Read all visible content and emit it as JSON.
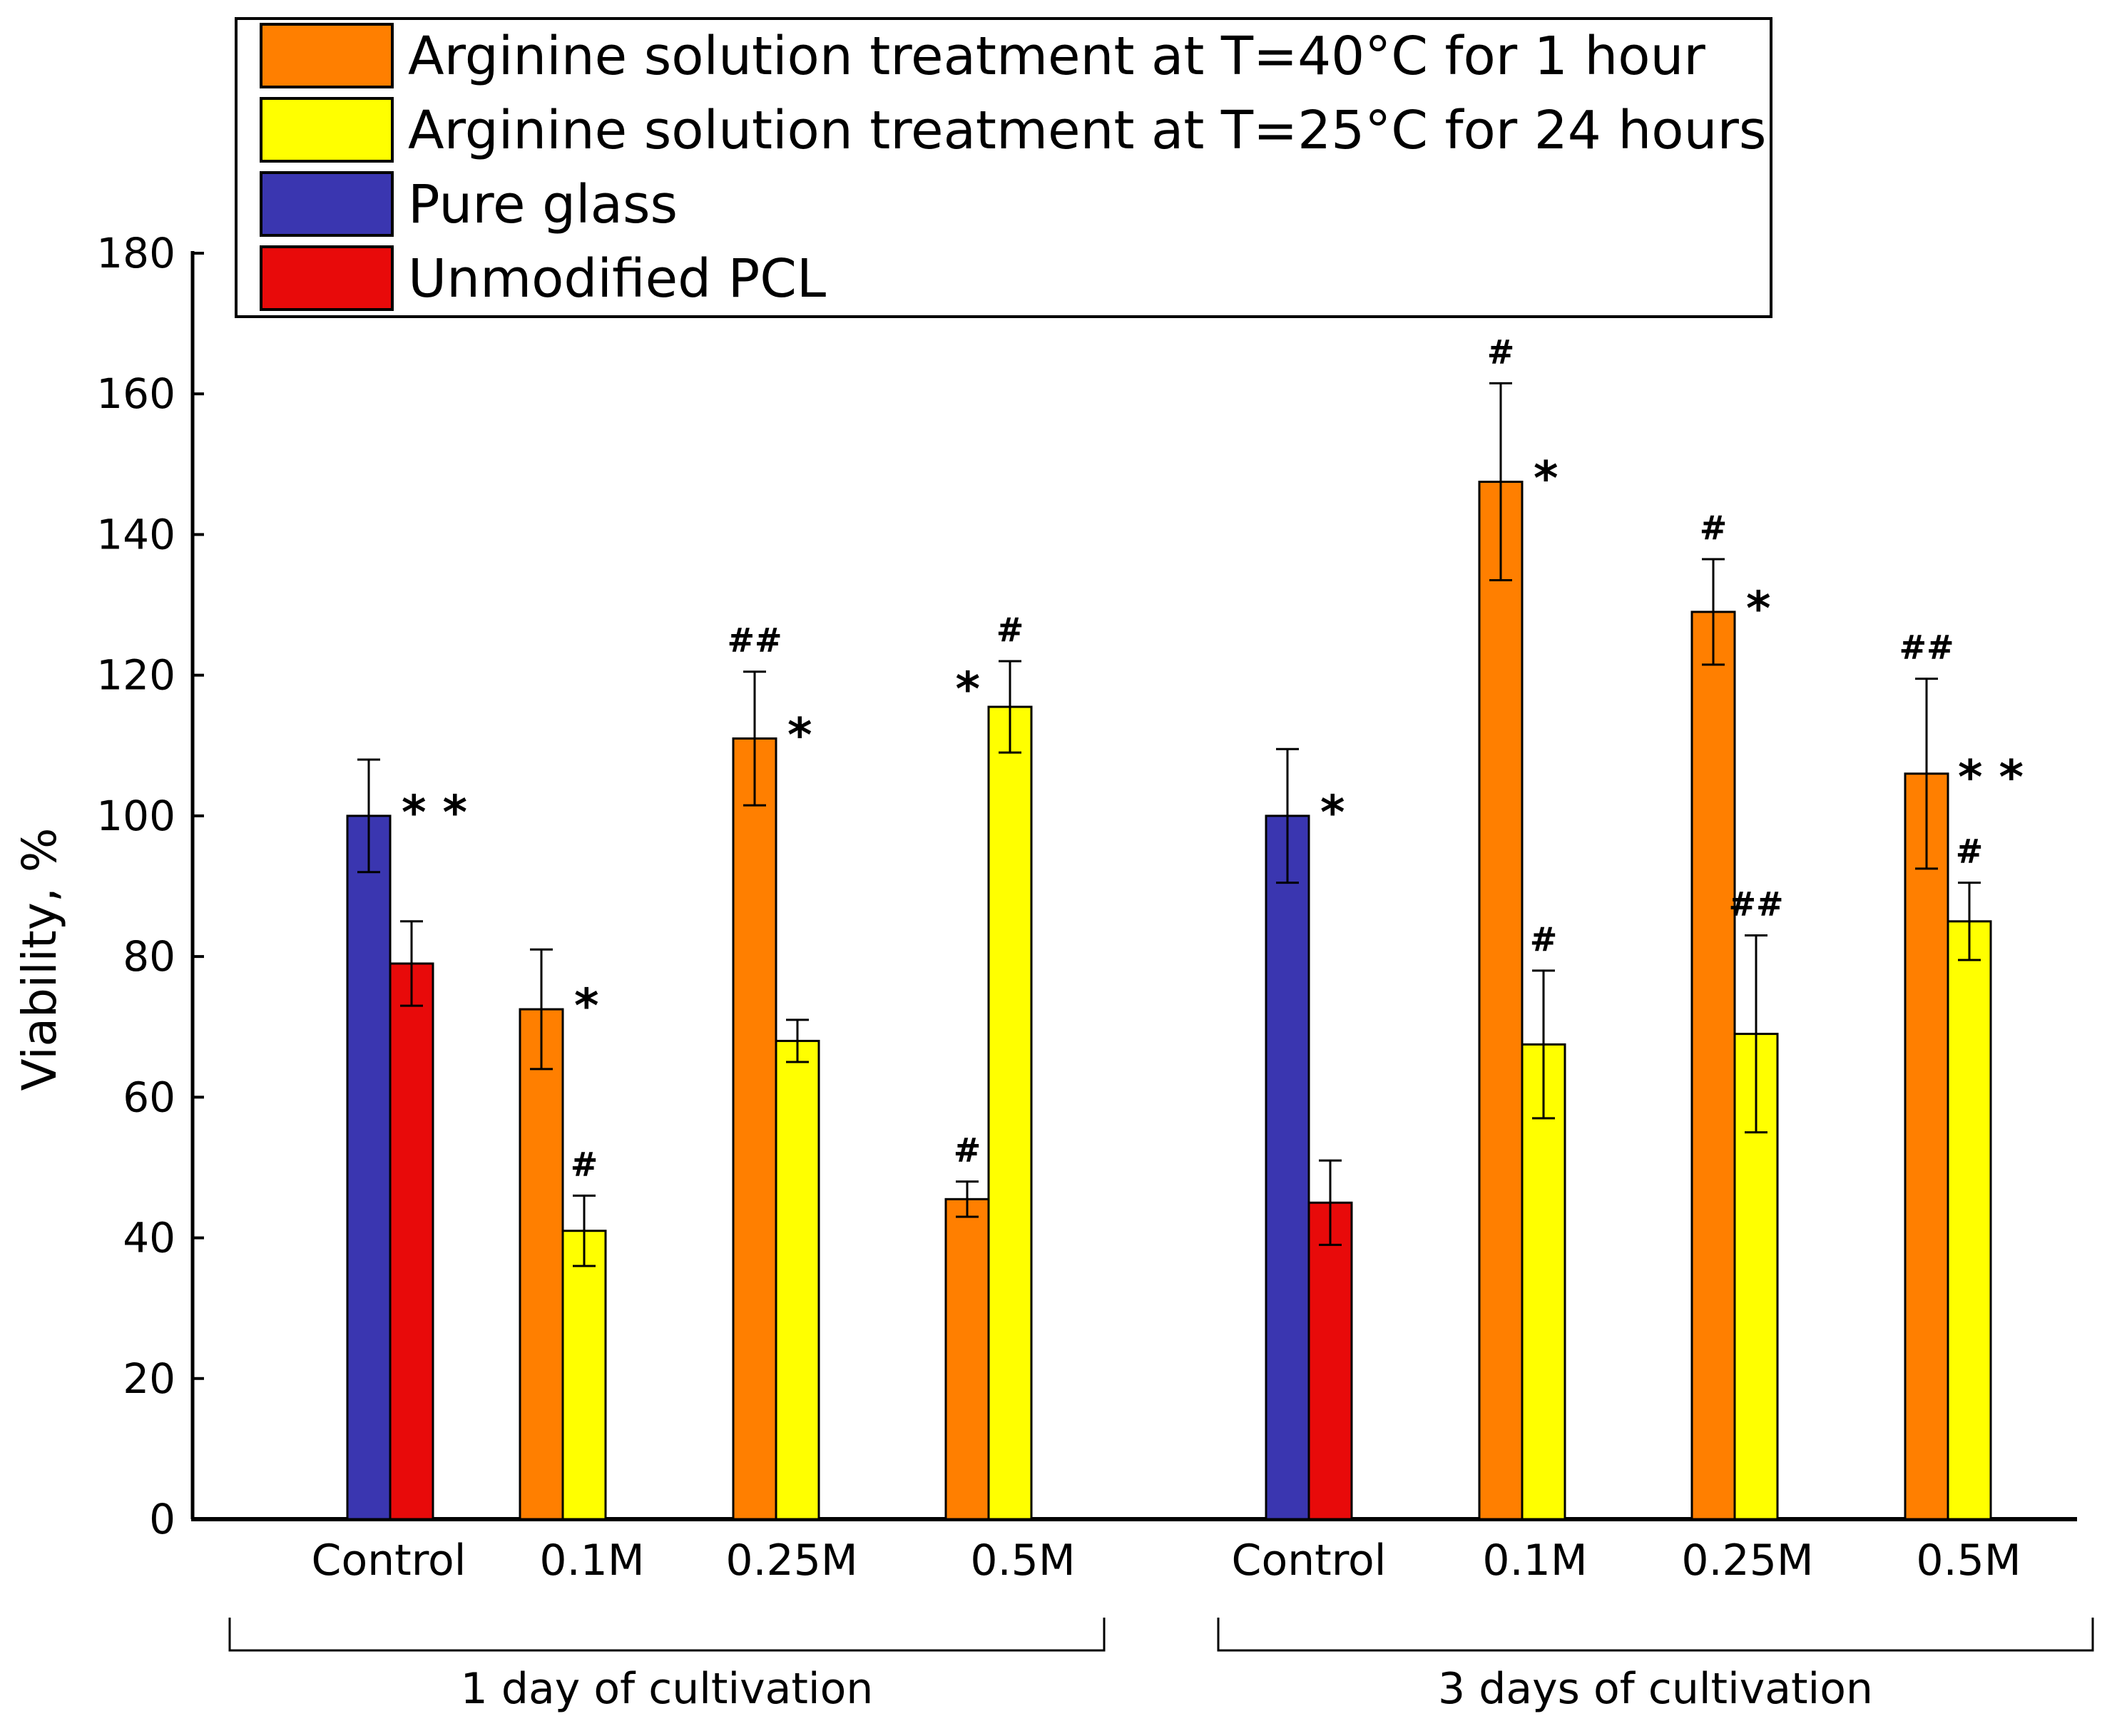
{
  "chart_data": {
    "type": "bar",
    "ylabel": "Viability, %",
    "xlabel": "",
    "ylim": [
      0,
      180
    ],
    "yticks": [
      0,
      20,
      40,
      60,
      80,
      100,
      120,
      140,
      160,
      180
    ],
    "legend_position": "top",
    "colors": {
      "orange": "#FF7F00",
      "yellow": "#FFFF00",
      "blue": "#3A36B0",
      "red": "#E80A0A"
    },
    "legend": [
      {
        "label": "Arginine solution treatment at T=40°C for 1 hour",
        "color": "#FF7F00"
      },
      {
        "label": "Arginine solution treatment at T=25°C for 24 hours",
        "color": "#FFFF00"
      },
      {
        "label": "Pure glass",
        "color": "#3A36B0"
      },
      {
        "label": "Unmodified PCL",
        "color": "#E80A0A"
      }
    ],
    "groups": [
      {
        "label": "1 day of cultivation",
        "categories": [
          {
            "label": "Control",
            "bars": [
              {
                "series": "Pure glass",
                "value": 100,
                "error": 8
              },
              {
                "series": "Unmodified PCL",
                "value": 79,
                "error": 6
              }
            ],
            "marks": [
              {
                "text": "* *",
                "bar": 0,
                "pos": "right"
              }
            ]
          },
          {
            "label": "0.1M",
            "bars": [
              {
                "series": "Arginine solution treatment at T=40°C for 1 hour",
                "value": 72.5,
                "error": 8.5
              },
              {
                "series": "Arginine solution treatment at T=25°C for 24 hours",
                "value": 41,
                "error": 5
              }
            ],
            "marks": [
              {
                "text": "*",
                "bar": 0,
                "pos": "right"
              },
              {
                "text": "#",
                "bar": 1,
                "pos": "above"
              }
            ]
          },
          {
            "label": "0.25M",
            "bars": [
              {
                "series": "Arginine solution treatment at T=40°C for 1 hour",
                "value": 111,
                "error": 9.5
              },
              {
                "series": "Arginine solution treatment at T=25°C for 24 hours",
                "value": 68,
                "error": 3
              }
            ],
            "marks": [
              {
                "text": "##",
                "bar": 0,
                "pos": "above"
              },
              {
                "text": "*",
                "bar": 0,
                "pos": "right"
              }
            ]
          },
          {
            "label": "0.5M",
            "bars": [
              {
                "series": "Arginine solution treatment at T=40°C for 1 hour",
                "value": 45.5,
                "error": 2.5
              },
              {
                "series": "Arginine solution treatment at T=25°C for 24 hours",
                "value": 115.5,
                "error": 6.5
              }
            ],
            "marks": [
              {
                "text": "#",
                "bar": 0,
                "pos": "above"
              },
              {
                "text": "*",
                "bar": 1,
                "pos": "left"
              },
              {
                "text": "#",
                "bar": 1,
                "pos": "above"
              }
            ]
          }
        ]
      },
      {
        "label": "3 days of cultivation",
        "categories": [
          {
            "label": "Control",
            "bars": [
              {
                "series": "Pure glass",
                "value": 100,
                "error": 9.5
              },
              {
                "series": "Unmodified PCL",
                "value": 45,
                "error": 6
              }
            ],
            "marks": [
              {
                "text": "*",
                "bar": 0,
                "pos": "right"
              }
            ]
          },
          {
            "label": "0.1M",
            "bars": [
              {
                "series": "Arginine solution treatment at T=40°C for 1 hour",
                "value": 147.5,
                "error": 14
              },
              {
                "series": "Arginine solution treatment at T=25°C for 24 hours",
                "value": 67.5,
                "error": 10.5
              }
            ],
            "marks": [
              {
                "text": "#",
                "bar": 0,
                "pos": "above"
              },
              {
                "text": "*",
                "bar": 0,
                "pos": "right"
              },
              {
                "text": "#",
                "bar": 1,
                "pos": "above"
              }
            ]
          },
          {
            "label": "0.25M",
            "bars": [
              {
                "series": "Arginine solution treatment at T=40°C for 1 hour",
                "value": 129,
                "error": 7.5
              },
              {
                "series": "Arginine solution treatment at T=25°C for 24 hours",
                "value": 69,
                "error": 14
              }
            ],
            "marks": [
              {
                "text": "#",
                "bar": 0,
                "pos": "above"
              },
              {
                "text": "*",
                "bar": 0,
                "pos": "right"
              },
              {
                "text": "##",
                "bar": 1,
                "pos": "above"
              }
            ]
          },
          {
            "label": "0.5M",
            "bars": [
              {
                "series": "Arginine solution treatment at T=40°C for 1 hour",
                "value": 106,
                "error": 13.5
              },
              {
                "series": "Arginine solution treatment at T=25°C for 24 hours",
                "value": 85,
                "error": 5.5
              }
            ],
            "marks": [
              {
                "text": "##",
                "bar": 0,
                "pos": "above"
              },
              {
                "text": "* *",
                "bar": 1,
                "pos": "aboveFar"
              },
              {
                "text": "#",
                "bar": 1,
                "pos": "above"
              }
            ]
          }
        ]
      }
    ]
  }
}
